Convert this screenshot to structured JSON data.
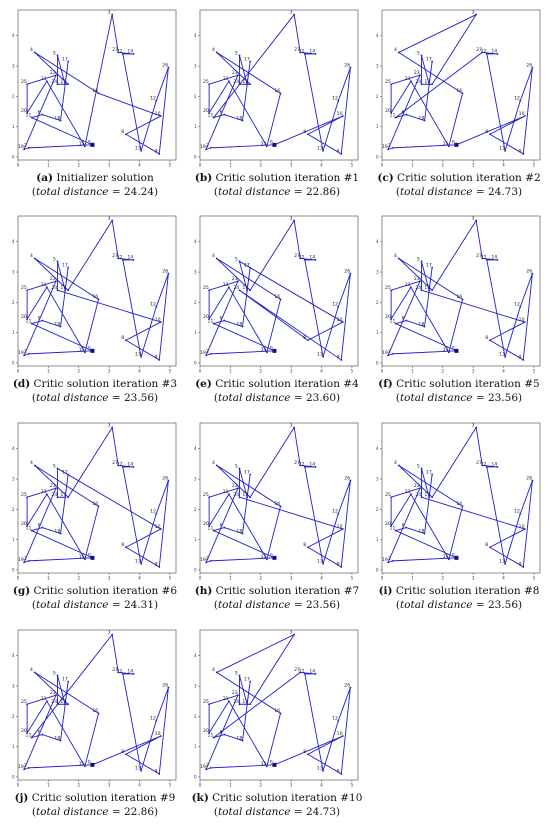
{
  "colors": {
    "route": "#1f1fcc",
    "depot": "#10107a",
    "frame": "#444444",
    "text": "#111111"
  },
  "chart_data": [
    {
      "type": "scatter",
      "panel_label": "(a)",
      "caption": "Initializer solution",
      "metric_label": "total distance",
      "metric_value": "24.24",
      "route": [
        0,
        2,
        19,
        23,
        25,
        20,
        21,
        15,
        3,
        27,
        14,
        22,
        13,
        12,
        26,
        9,
        8,
        10,
        16,
        4,
        7,
        24,
        5,
        1,
        17,
        18,
        6,
        11,
        0
      ]
    },
    {
      "type": "scatter",
      "panel_label": "(b)",
      "caption": "Critic solution iteration #1",
      "metric_label": "total distance",
      "metric_value": "22.86",
      "route": [
        0,
        2,
        19,
        23,
        25,
        20,
        21,
        15,
        16,
        4,
        7,
        24,
        5,
        1,
        17,
        18,
        6,
        11,
        3,
        27,
        14,
        22,
        13,
        12,
        26,
        9,
        8,
        10,
        0
      ]
    },
    {
      "type": "scatter",
      "panel_label": "(c)",
      "caption": "Critic solution iteration #2",
      "metric_label": "total distance",
      "metric_value": "24.73",
      "route": [
        0,
        2,
        19,
        23,
        25,
        20,
        21,
        15,
        16,
        4,
        3,
        7,
        24,
        5,
        1,
        17,
        18,
        6,
        11,
        27,
        14,
        22,
        13,
        12,
        26,
        9,
        8,
        10,
        0
      ]
    },
    {
      "type": "scatter",
      "panel_label": "(d)",
      "caption": "Critic solution iteration #3",
      "metric_label": "total distance",
      "metric_value": "23.56",
      "route": [
        0,
        2,
        19,
        23,
        25,
        20,
        21,
        15,
        16,
        4,
        7,
        3,
        27,
        14,
        22,
        13,
        12,
        26,
        9,
        8,
        10,
        24,
        5,
        1,
        17,
        18,
        6,
        11,
        0
      ]
    },
    {
      "type": "scatter",
      "panel_label": "(e)",
      "caption": "Critic solution iteration #4",
      "metric_label": "total distance",
      "metric_value": "23.60",
      "route": [
        0,
        2,
        19,
        23,
        25,
        20,
        21,
        15,
        16,
        4,
        7,
        3,
        27,
        14,
        22,
        13,
        12,
        26,
        9,
        24,
        8,
        10,
        5,
        1,
        17,
        18,
        6,
        11,
        0
      ]
    },
    {
      "type": "scatter",
      "panel_label": "(f)",
      "caption": "Critic solution iteration #5",
      "metric_label": "total distance",
      "metric_value": "23.56",
      "route": [
        0,
        2,
        19,
        23,
        25,
        20,
        21,
        15,
        16,
        4,
        7,
        3,
        27,
        14,
        22,
        13,
        12,
        26,
        9,
        8,
        10,
        24,
        5,
        1,
        17,
        18,
        6,
        11,
        0
      ]
    },
    {
      "type": "scatter",
      "panel_label": "(g)",
      "caption": "Critic solution iteration #6",
      "metric_label": "total distance",
      "metric_value": "24.31",
      "route": [
        0,
        2,
        19,
        23,
        25,
        20,
        21,
        15,
        16,
        4,
        7,
        3,
        27,
        14,
        22,
        13,
        12,
        26,
        9,
        8,
        10,
        5,
        24,
        1,
        17,
        18,
        6,
        11,
        0
      ]
    },
    {
      "type": "scatter",
      "panel_label": "(h)",
      "caption": "Critic solution iteration #7",
      "metric_label": "total distance",
      "metric_value": "23.56",
      "route": [
        0,
        2,
        19,
        23,
        25,
        20,
        21,
        15,
        16,
        4,
        7,
        3,
        27,
        14,
        22,
        13,
        12,
        26,
        9,
        8,
        10,
        24,
        5,
        1,
        17,
        18,
        6,
        11,
        0
      ]
    },
    {
      "type": "scatter",
      "panel_label": "(i)",
      "caption": "Critic solution iteration #8",
      "metric_label": "total distance",
      "metric_value": "23.56",
      "route": [
        0,
        2,
        19,
        23,
        25,
        20,
        21,
        15,
        16,
        4,
        7,
        3,
        27,
        14,
        22,
        13,
        12,
        26,
        9,
        8,
        10,
        24,
        5,
        1,
        17,
        18,
        6,
        11,
        0
      ]
    },
    {
      "type": "scatter",
      "panel_label": "(j)",
      "caption": "Critic solution iteration #9",
      "metric_label": "total distance",
      "metric_value": "22.86",
      "route": [
        0,
        2,
        19,
        23,
        25,
        20,
        21,
        15,
        16,
        4,
        7,
        24,
        5,
        1,
        17,
        18,
        6,
        11,
        3,
        27,
        14,
        22,
        13,
        12,
        26,
        9,
        8,
        10,
        0
      ]
    },
    {
      "type": "scatter",
      "panel_label": "(k)",
      "caption": "Critic solution iteration #10",
      "metric_label": "total distance",
      "metric_value": "24.73",
      "route": [
        0,
        2,
        19,
        23,
        25,
        20,
        21,
        15,
        16,
        4,
        3,
        7,
        24,
        5,
        1,
        17,
        18,
        6,
        11,
        27,
        14,
        22,
        13,
        12,
        26,
        9,
        8,
        10,
        0
      ]
    }
  ],
  "nodes": {
    "ids": [
      0,
      1,
      2,
      3,
      4,
      5,
      6,
      7,
      8,
      9,
      10,
      11,
      12,
      13,
      14,
      15,
      16,
      17,
      18,
      19,
      20,
      21,
      22,
      23,
      24,
      25,
      26,
      27
    ],
    "x": [
      2.45,
      1.55,
      0.35,
      3.1,
      0.55,
      1.3,
      0.8,
      1.65,
      3.55,
      4.65,
      4.7,
      0.45,
      4.55,
      4.05,
      3.8,
      2.2,
      2.65,
      1.65,
      1.4,
      0.2,
      0.3,
      0.95,
      3.45,
      1.25,
      1.3,
      0.3,
      4.95,
      3.3
    ],
    "y": [
      0.4,
      2.4,
      0.3,
      4.7,
      3.45,
      3.35,
      1.4,
      2.4,
      0.75,
      0.1,
      1.35,
      1.3,
      1.85,
      0.2,
      3.4,
      0.35,
      2.1,
      3.15,
      1.2,
      0.25,
      1.45,
      2.5,
      3.4,
      2.7,
      2.4,
      2.4,
      2.95,
      3.45
    ],
    "xlim": [
      0,
      5.2
    ],
    "ylim": [
      -0.1,
      4.85
    ],
    "xticks": [
      0,
      1,
      2,
      3,
      4,
      5
    ],
    "yticks": [
      0,
      1,
      2,
      3,
      4
    ]
  }
}
